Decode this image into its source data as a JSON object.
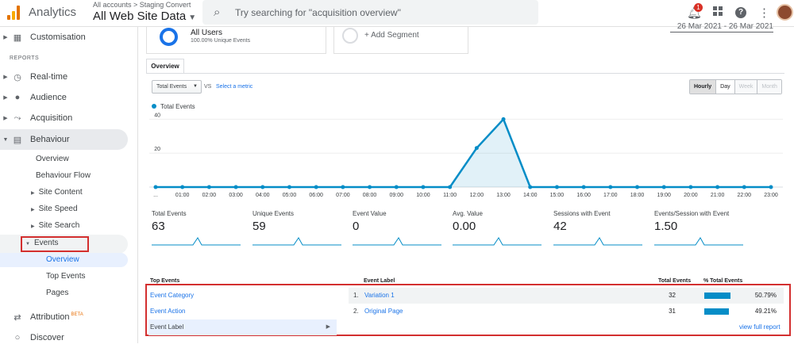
{
  "header": {
    "app_name": "Analytics",
    "breadcrumb": "All accounts > Staging Convert",
    "property": "All Web Site Data",
    "search_placeholder": "Try searching for \"acquisition overview\"",
    "notification_count": "1"
  },
  "sidebar": {
    "customisation": "Customisation",
    "reports_heading": "REPORTS",
    "realtime": "Real-time",
    "audience": "Audience",
    "acquisition": "Acquisition",
    "behaviour": "Behaviour",
    "behaviour_sub": {
      "overview": "Overview",
      "behaviour_flow": "Behaviour Flow",
      "site_content": "Site Content",
      "site_speed": "Site Speed",
      "site_search": "Site Search",
      "events": "Events",
      "events_overview": "Overview",
      "top_events": "Top Events",
      "pages": "Pages"
    },
    "attribution": "Attribution",
    "attribution_badge": "BETA",
    "discover": "Discover"
  },
  "segments": {
    "all_users": "All Users",
    "all_users_sub": "100.00% Unique Events",
    "add_segment": "+ Add Segment",
    "date_range": "26 Mar 2021 - 26 Mar 2021"
  },
  "toolbar": {
    "tab": "Overview",
    "metric": "Total Events",
    "vs": "VS",
    "select_metric": "Select a metric",
    "granularity": [
      "Hourly",
      "Day",
      "Week",
      "Month"
    ]
  },
  "chart_data": {
    "type": "area",
    "legend": "Total Events",
    "color": "#058dc7",
    "x": [
      "...",
      "01:00",
      "02:00",
      "03:00",
      "04:00",
      "05:00",
      "06:00",
      "07:00",
      "08:00",
      "09:00",
      "10:00",
      "11:00",
      "12:00",
      "13:00",
      "14:00",
      "15:00",
      "16:00",
      "17:00",
      "18:00",
      "19:00",
      "20:00",
      "21:00",
      "22:00",
      "23:00"
    ],
    "values": [
      0,
      0,
      0,
      0,
      0,
      0,
      0,
      0,
      0,
      0,
      0,
      0,
      23,
      40,
      0,
      0,
      0,
      0,
      0,
      0,
      0,
      0,
      0,
      0
    ],
    "yticks": [
      20,
      40
    ],
    "ylim": [
      0,
      43
    ],
    "grid": true
  },
  "scorecards": [
    {
      "label": "Total Events",
      "value": "63"
    },
    {
      "label": "Unique Events",
      "value": "59"
    },
    {
      "label": "Event Value",
      "value": "0"
    },
    {
      "label": "Avg. Value",
      "value": "0.00"
    },
    {
      "label": "Sessions with Event",
      "value": "42"
    },
    {
      "label": "Events/Session with Event",
      "value": "1.50"
    }
  ],
  "top_events": {
    "header": "Top Events",
    "dimensions": [
      "Event Category",
      "Event Action",
      "Event Label"
    ],
    "col_label": "Event Label",
    "col_total": "Total Events",
    "col_pct": "% Total Events",
    "rows": [
      {
        "index": "1.",
        "name": "Variation 1",
        "total": "32",
        "pct": "50.79%",
        "pct_value": 50.79
      },
      {
        "index": "2.",
        "name": "Original Page",
        "total": "31",
        "pct": "49.21%",
        "pct_value": 49.21
      }
    ],
    "full_report": "view full report"
  }
}
